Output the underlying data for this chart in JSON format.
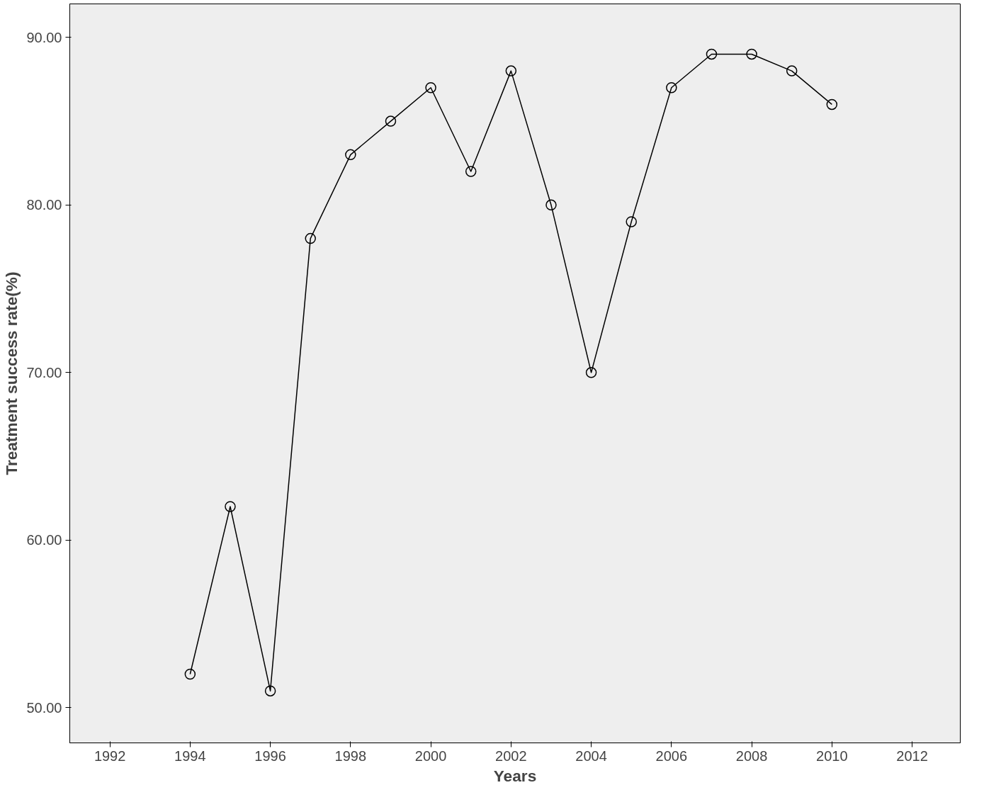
{
  "chart_data": {
    "type": "line",
    "xlabel": "Years",
    "ylabel": "Treatment success rate(%)",
    "x": [
      1994,
      1995,
      1996,
      1997,
      1998,
      1999,
      2000,
      2001,
      2002,
      2003,
      2004,
      2005,
      2006,
      2007,
      2008,
      2009,
      2010
    ],
    "series": [
      {
        "color": "#000000",
        "values": [
          52,
          62,
          51,
          78,
          83,
          85,
          87,
          82,
          88,
          80,
          70,
          79,
          87,
          89,
          89,
          88,
          86
        ]
      }
    ],
    "xlim": [
      1991,
      2013.2
    ],
    "ylim": [
      47.9,
      92
    ],
    "xticks": [
      1992,
      1994,
      1996,
      1998,
      2000,
      2002,
      2004,
      2006,
      2008,
      2010,
      2012
    ],
    "yticks": [
      {
        "value": 50,
        "label": "50.00"
      },
      {
        "value": 60,
        "label": "60.00"
      },
      {
        "value": 70,
        "label": "70.00"
      },
      {
        "value": 80,
        "label": "80.00"
      },
      {
        "value": 90,
        "label": "90.00"
      }
    ],
    "grid": false,
    "marker": "circle",
    "line_style": "solid"
  }
}
